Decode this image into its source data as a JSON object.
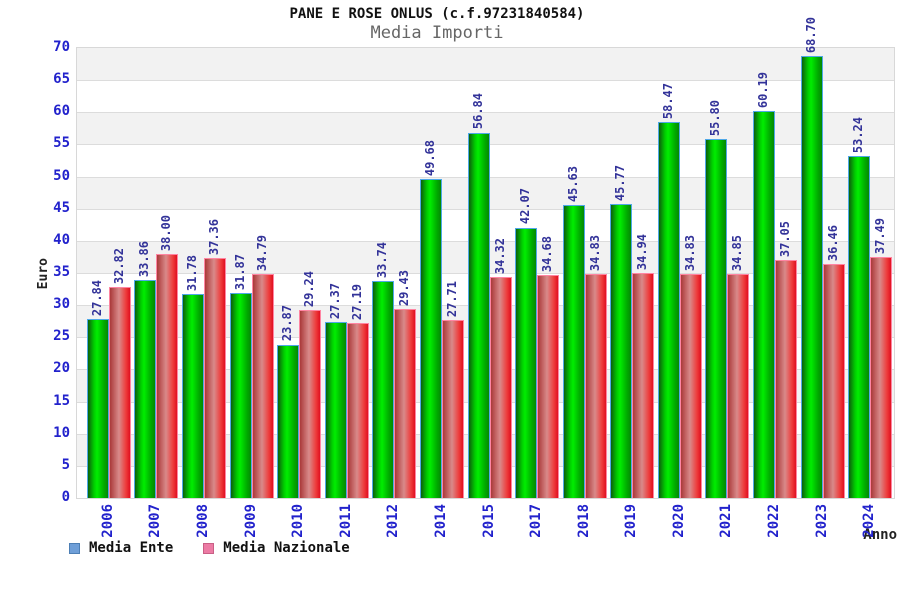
{
  "title": "PANE E ROSE ONLUS (c.f.97231840584)",
  "subtitle": "Media Importi",
  "chart_data": {
    "type": "bar",
    "title": "PANE E ROSE ONLUS (c.f.97231840584)",
    "subtitle": "Media Importi",
    "xlabel": "Anno",
    "ylabel": "Euro",
    "ylim": [
      0,
      70
    ],
    "ytick_step": 5,
    "grid": true,
    "legend_position": "bottom-left",
    "categories": [
      "2006",
      "2007",
      "2008",
      "2009",
      "2010",
      "2011",
      "2012",
      "2014",
      "2015",
      "2017",
      "2018",
      "2019",
      "2020",
      "2021",
      "2022",
      "2023",
      "2024"
    ],
    "series": [
      {
        "name": "Media Ente",
        "values": [
          27.84,
          33.86,
          31.78,
          31.87,
          23.87,
          27.37,
          33.74,
          49.68,
          56.84,
          42.07,
          45.63,
          45.77,
          58.47,
          55.8,
          60.19,
          68.7,
          53.24
        ],
        "bar_color": "#00cc00",
        "legend_swatch": "#6f9fd8",
        "legend_swatch_border": "#4d7fb5"
      },
      {
        "name": "Media Nazionale",
        "values": [
          32.82,
          38.0,
          37.36,
          34.79,
          29.24,
          27.19,
          29.43,
          27.71,
          34.32,
          34.68,
          34.83,
          34.94,
          34.83,
          34.85,
          37.05,
          36.46,
          37.49
        ],
        "bar_color": "#ee2233",
        "legend_swatch": "#ec7ba4",
        "legend_swatch_border": "#c95f85"
      }
    ],
    "colors": {
      "tick_label": "#2222cc",
      "value_label": "#333399",
      "grid_line": "#dcdcdc",
      "band_fill": "#f2f2f2",
      "subtitle_gray": "#666666"
    }
  }
}
